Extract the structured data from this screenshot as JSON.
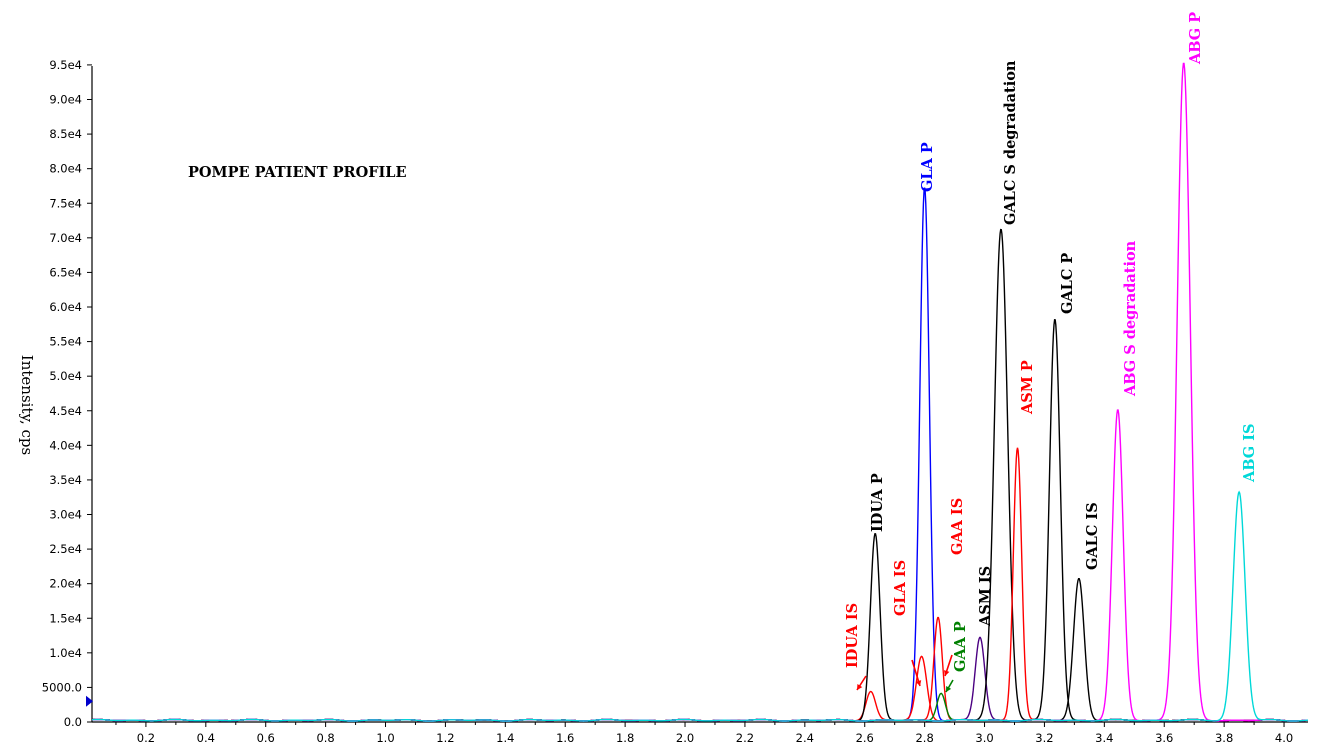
{
  "chart_data": {
    "type": "line",
    "title": "POMPE PATIENT PROFILE",
    "xlabel": "",
    "ylabel": "Intensity, cps",
    "xlim": [
      0.02,
      4.08
    ],
    "ylim": [
      0,
      96000
    ],
    "x_ticks": [
      "0.2",
      "0.4",
      "0.6",
      "0.8",
      "1.0",
      "1.2",
      "1.4",
      "1.6",
      "1.8",
      "2.0",
      "2.2",
      "2.4",
      "2.6",
      "2.8",
      "3.0",
      "3.2",
      "3.4",
      "3.6",
      "3.8",
      "4.0"
    ],
    "y_ticks": [
      "0.0",
      "5000.0",
      "1.0e4",
      "1.5e4",
      "2.0e4",
      "2.5e4",
      "3.0e4",
      "3.5e4",
      "4.0e4",
      "4.5e4",
      "5.0e4",
      "5.5e4",
      "6.0e4",
      "6.5e4",
      "7.0e4",
      "7.5e4",
      "8.0e4",
      "8.5e4",
      "9.0e4",
      "9.5e4"
    ],
    "grid": false,
    "series": [
      {
        "name": "IDUA IS",
        "color": "#ff0000",
        "peak_x": 2.62,
        "peak_y": 4200,
        "width": 0.016
      },
      {
        "name": "IDUA P",
        "color": "#000000",
        "peak_x": 2.635,
        "peak_y": 27000,
        "width": 0.016
      },
      {
        "name": "GLA P",
        "color": "#0000ff",
        "peak_x": 2.8,
        "peak_y": 77000,
        "width": 0.016
      },
      {
        "name": "GLA IS",
        "color": "#ff0000",
        "peak_x": 2.79,
        "peak_y": 9200,
        "width": 0.017
      },
      {
        "name": "GAA IS",
        "color": "#ff0000",
        "peak_x": 2.845,
        "peak_y": 15000,
        "width": 0.014
      },
      {
        "name": "GAA P",
        "color": "#008000",
        "peak_x": 2.855,
        "peak_y": 4000,
        "width": 0.014
      },
      {
        "name": "ASM IS",
        "color": "#4b0082",
        "peak_x": 2.985,
        "peak_y": 12000,
        "width": 0.016
      },
      {
        "name": "GALC S degradation",
        "color": "#000000",
        "peak_x": 3.055,
        "peak_y": 71000,
        "width": 0.022
      },
      {
        "name": "ASM P",
        "color": "#ff0000",
        "peak_x": 3.11,
        "peak_y": 39500,
        "width": 0.014
      },
      {
        "name": "GALC P",
        "color": "#000000",
        "peak_x": 3.235,
        "peak_y": 58000,
        "width": 0.018
      },
      {
        "name": "GALC IS",
        "color": "#000000",
        "peak_x": 3.315,
        "peak_y": 20500,
        "width": 0.018
      },
      {
        "name": "ABG S degradation",
        "color": "#ff00ff",
        "peak_x": 3.445,
        "peak_y": 44800,
        "width": 0.018
      },
      {
        "name": "ABG P",
        "color": "#ff00ff",
        "peak_x": 3.665,
        "peak_y": 95000,
        "width": 0.022
      },
      {
        "name": "ABG IS",
        "color": "#00d8d8",
        "peak_x": 3.85,
        "peak_y": 33000,
        "width": 0.02
      }
    ],
    "annotations": [
      {
        "text": "IDUA IS",
        "color": "#ff0000"
      },
      {
        "text": "IDUA P",
        "color": "#000000"
      },
      {
        "text": "GLA P",
        "color": "#0000ff"
      },
      {
        "text": "GLA IS",
        "color": "#ff0000"
      },
      {
        "text": "GAA IS",
        "color": "#ff0000"
      },
      {
        "text": "GAA P",
        "color": "#008000"
      },
      {
        "text": "ASM IS",
        "color": "#000000"
      },
      {
        "text": "GALC S degradation",
        "color": "#000000"
      },
      {
        "text": "ASM P",
        "color": "#ff0000"
      },
      {
        "text": "GALC P",
        "color": "#000000"
      },
      {
        "text": "GALC IS",
        "color": "#000000"
      },
      {
        "text": "ABG S degradation",
        "color": "#ff00ff"
      },
      {
        "text": "ABG P",
        "color": "#ff00ff"
      },
      {
        "text": "ABG IS",
        "color": "#00d8d8"
      }
    ]
  }
}
